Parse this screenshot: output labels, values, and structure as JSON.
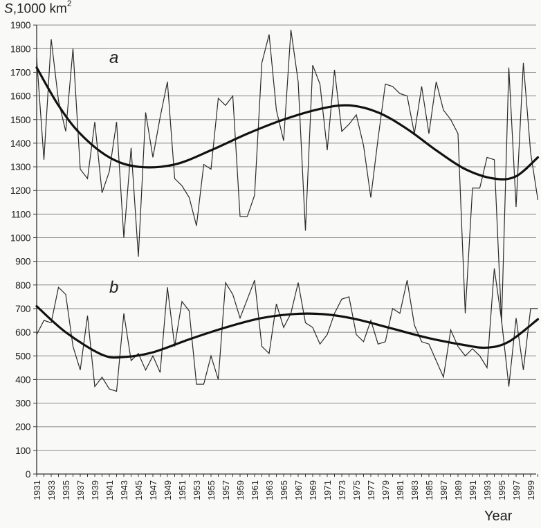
{
  "chart_data": {
    "type": "line",
    "title": "",
    "ylabel": "S, 1000 km2",
    "ylabel_parts": {
      "var": "S",
      "unit": ",1000 km",
      "sup": "2"
    },
    "xlabel": "Year",
    "ylim": [
      0,
      1900
    ],
    "yticks": [
      0,
      100,
      200,
      300,
      400,
      500,
      600,
      700,
      800,
      900,
      1000,
      1100,
      1200,
      1300,
      1400,
      1500,
      1600,
      1700,
      1800,
      1900
    ],
    "xticks_labeled": [
      1931,
      1933,
      1935,
      1937,
      1939,
      1941,
      1943,
      1945,
      1947,
      1949,
      1951,
      1953,
      1955,
      1957,
      1959,
      1961,
      1963,
      1965,
      1967,
      1969,
      1971,
      1973,
      1975,
      1977,
      1979,
      1981,
      1983,
      1985,
      1987,
      1989,
      1991,
      1993,
      1995,
      1997,
      1999
    ],
    "grid": "horizontal",
    "legend": "none (inline labels a and b)",
    "x": [
      1931,
      1932,
      1933,
      1934,
      1935,
      1936,
      1937,
      1938,
      1939,
      1940,
      1941,
      1942,
      1943,
      1944,
      1945,
      1946,
      1947,
      1948,
      1949,
      1950,
      1951,
      1952,
      1953,
      1954,
      1955,
      1956,
      1957,
      1958,
      1959,
      1960,
      1961,
      1962,
      1963,
      1964,
      1965,
      1966,
      1967,
      1968,
      1969,
      1970,
      1971,
      1972,
      1973,
      1974,
      1975,
      1976,
      1977,
      1978,
      1979,
      1980,
      1981,
      1982,
      1983,
      1984,
      1985,
      1986,
      1987,
      1988,
      1989,
      1990,
      1991,
      1992,
      1993,
      1994,
      1995,
      1996,
      1997,
      1998,
      1999,
      2000
    ],
    "series": [
      {
        "name": "a",
        "style": "thin",
        "values": [
          1760,
          1330,
          1840,
          1580,
          1450,
          1800,
          1290,
          1250,
          1490,
          1190,
          1280,
          1490,
          1000,
          1380,
          920,
          1530,
          1340,
          1510,
          1660,
          1250,
          1220,
          1170,
          1050,
          1310,
          1290,
          1590,
          1560,
          1600,
          1090,
          1090,
          1180,
          1740,
          1860,
          1540,
          1410,
          1880,
          1660,
          1030,
          1730,
          1650,
          1370,
          1710,
          1450,
          1480,
          1520,
          1390,
          1170,
          1420,
          1650,
          1640,
          1610,
          1600,
          1440,
          1640,
          1440,
          1660,
          1540,
          1500,
          1440,
          680,
          1210,
          1210,
          1340,
          1330,
          640,
          1720,
          1130,
          1740,
          1360,
          1160
        ]
      },
      {
        "name": "b",
        "style": "thin",
        "values": [
          590,
          650,
          640,
          790,
          760,
          540,
          440,
          670,
          370,
          410,
          360,
          350,
          680,
          480,
          510,
          440,
          500,
          430,
          790,
          540,
          730,
          690,
          380,
          380,
          500,
          400,
          810,
          760,
          660,
          740,
          820,
          540,
          510,
          720,
          620,
          680,
          810,
          640,
          620,
          550,
          590,
          680,
          740,
          750,
          590,
          560,
          650,
          550,
          560,
          700,
          680,
          820,
          630,
          560,
          550,
          480,
          410,
          610,
          540,
          500,
          530,
          500,
          450,
          870,
          650,
          370,
          660,
          440,
          700,
          700
        ]
      },
      {
        "name": "a-trend",
        "style": "thick",
        "points": [
          [
            1931,
            1720
          ],
          [
            1934,
            1560
          ],
          [
            1937,
            1440
          ],
          [
            1941,
            1340
          ],
          [
            1945,
            1300
          ],
          [
            1950,
            1310
          ],
          [
            1955,
            1370
          ],
          [
            1960,
            1440
          ],
          [
            1965,
            1500
          ],
          [
            1970,
            1545
          ],
          [
            1974,
            1560
          ],
          [
            1978,
            1530
          ],
          [
            1982,
            1460
          ],
          [
            1986,
            1370
          ],
          [
            1990,
            1290
          ],
          [
            1994,
            1250
          ],
          [
            1997,
            1260
          ],
          [
            2000,
            1340
          ]
        ]
      },
      {
        "name": "b-trend",
        "style": "thick",
        "points": [
          [
            1931,
            710
          ],
          [
            1935,
            600
          ],
          [
            1940,
            505
          ],
          [
            1943,
            495
          ],
          [
            1947,
            515
          ],
          [
            1952,
            570
          ],
          [
            1957,
            620
          ],
          [
            1962,
            660
          ],
          [
            1967,
            678
          ],
          [
            1971,
            675
          ],
          [
            1975,
            655
          ],
          [
            1980,
            615
          ],
          [
            1985,
            575
          ],
          [
            1990,
            545
          ],
          [
            1993,
            535
          ],
          [
            1996,
            560
          ],
          [
            2000,
            655
          ]
        ]
      }
    ],
    "annotations": [
      {
        "text": "a",
        "x": 1942,
        "y": 1750
      },
      {
        "text": "b",
        "x": 1942,
        "y": 775
      }
    ]
  },
  "labels": {
    "y_var": "S",
    "y_unit": ",1000 km",
    "y_sup": "2",
    "x_title": "Year",
    "series_a": "a",
    "series_b": "b"
  }
}
